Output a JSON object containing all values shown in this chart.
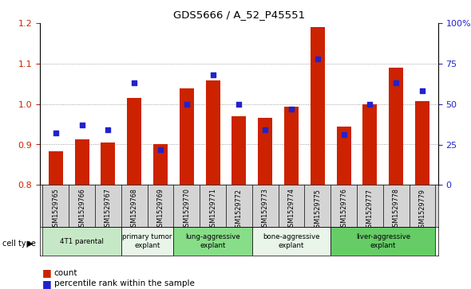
{
  "title": "GDS5666 / A_52_P45551",
  "samples": [
    "GSM1529765",
    "GSM1529766",
    "GSM1529767",
    "GSM1529768",
    "GSM1529769",
    "GSM1529770",
    "GSM1529771",
    "GSM1529772",
    "GSM1529773",
    "GSM1529774",
    "GSM1529775",
    "GSM1529776",
    "GSM1529777",
    "GSM1529778",
    "GSM1529779"
  ],
  "count_values": [
    0.884,
    0.912,
    0.905,
    1.015,
    0.901,
    1.038,
    1.058,
    0.97,
    0.966,
    0.993,
    1.19,
    0.944,
    1.0,
    1.09,
    1.008
  ],
  "percentile_pct": [
    32,
    37,
    34,
    63,
    22,
    50,
    68,
    50,
    34,
    47,
    78,
    31,
    50,
    63,
    58
  ],
  "cell_type_groups": [
    {
      "label": "4T1 parental",
      "start": 0,
      "end": 3,
      "color": "#c6e8c6"
    },
    {
      "label": "primary tumor\nexplant",
      "start": 3,
      "end": 5,
      "color": "#e8f5e8"
    },
    {
      "label": "lung-aggressive\nexplant",
      "start": 5,
      "end": 8,
      "color": "#88dd88"
    },
    {
      "label": "bone-aggressive\nexplant",
      "start": 8,
      "end": 11,
      "color": "#e8f5e8"
    },
    {
      "label": "liver-aggressive\nexplant",
      "start": 11,
      "end": 15,
      "color": "#66cc66"
    }
  ],
  "bar_color": "#cc2200",
  "dot_color": "#2222cc",
  "ylim_left": [
    0.8,
    1.2
  ],
  "ylim_right": [
    0,
    100
  ],
  "yticks_left": [
    0.8,
    0.9,
    1.0,
    1.1,
    1.2
  ],
  "yticks_right": [
    0,
    25,
    50,
    75,
    100
  ],
  "ytick_labels_right": [
    "0",
    "25",
    "50",
    "75",
    "100%"
  ],
  "grid_color": "#888888",
  "bg_color": "#ffffff",
  "label_bg_color": "#d4d4d4",
  "legend_count_label": "count",
  "legend_pct_label": "percentile rank within the sample",
  "cell_type_label": "cell type",
  "bar_bottom": 0.8
}
